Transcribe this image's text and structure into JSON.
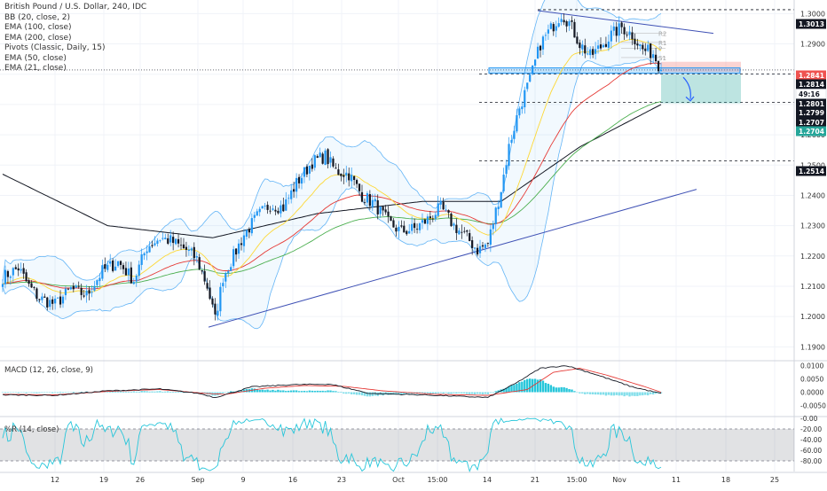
{
  "chart_data": {
    "type": "candlestick",
    "symbol_line": "British Pound / U.S. Dollar, 240, IDC",
    "indicators": [
      "BB (20, close, 2)",
      "EMA (100, close)",
      "EMA (200, close)",
      "Pivots (Classic, Daily, 15)",
      "EMA (50, close)",
      "EMA (21, close)"
    ],
    "x_labels": [
      "12",
      "19",
      "26",
      "Sep",
      "9",
      "16",
      "23",
      "Oct",
      "15:00",
      "14",
      "21",
      "15:00",
      "Nov",
      "11",
      "18",
      "25"
    ],
    "price_axis": {
      "ticks": [
        "1.3000",
        "1.2900",
        "1.2800",
        "1.2700",
        "1.2600",
        "1.2500",
        "1.2400",
        "1.2300",
        "1.2200",
        "1.2100",
        "1.2000",
        "1.1900"
      ],
      "ylim": [
        1.186,
        1.3045
      ]
    },
    "price_badges": [
      {
        "label": "1.3013",
        "value": 1.3013,
        "bg": "#131722",
        "dashed": true
      },
      {
        "label": "1.2841",
        "value": 1.2841,
        "bg": "#ef5350",
        "dashed": false
      },
      {
        "label": "1.2814",
        "value": 1.2814,
        "bg": "#131722",
        "dashed": false
      },
      {
        "label": "49:16",
        "value": 1.2807,
        "bg": "#ffffff",
        "dashed": false
      },
      {
        "label": "1.2801",
        "value": 1.2801,
        "bg": "#131722",
        "dashed": true
      },
      {
        "label": "1.2799",
        "value": 1.2799,
        "bg": "#131722",
        "dashed": false
      },
      {
        "label": "1.2707",
        "value": 1.2707,
        "bg": "#131722",
        "dashed": true
      },
      {
        "label": "1.2704",
        "value": 1.2704,
        "bg": "#26a69a",
        "dashed": false
      },
      {
        "label": "1.2514",
        "value": 1.2514,
        "bg": "#131722",
        "dashed": true
      }
    ],
    "pivot_labels": [
      "R2",
      "R1",
      "P",
      "S1"
    ],
    "close_series_anchors": [
      [
        0,
        1.213
      ],
      [
        6,
        1.216
      ],
      [
        10,
        1.21
      ],
      [
        14,
        1.206
      ],
      [
        20,
        1.204
      ],
      [
        26,
        1.209
      ],
      [
        32,
        1.207
      ],
      [
        38,
        1.215
      ],
      [
        44,
        1.218
      ],
      [
        50,
        1.212
      ],
      [
        55,
        1.223
      ],
      [
        60,
        1.226
      ],
      [
        64,
        1.225
      ],
      [
        70,
        1.222
      ],
      [
        74,
        1.219
      ],
      [
        78,
        1.21
      ],
      [
        81,
        1.199
      ],
      [
        84,
        1.213
      ],
      [
        88,
        1.22
      ],
      [
        92,
        1.227
      ],
      [
        97,
        1.233
      ],
      [
        102,
        1.237
      ],
      [
        107,
        1.236
      ],
      [
        112,
        1.244
      ],
      [
        118,
        1.251
      ],
      [
        123,
        1.253
      ],
      [
        127,
        1.248
      ],
      [
        132,
        1.247
      ],
      [
        137,
        1.24
      ],
      [
        142,
        1.237
      ],
      [
        147,
        1.231
      ],
      [
        152,
        1.228
      ],
      [
        157,
        1.229
      ],
      [
        162,
        1.232
      ],
      [
        167,
        1.236
      ],
      [
        172,
        1.23
      ],
      [
        177,
        1.226
      ],
      [
        181,
        1.222
      ],
      [
        185,
        1.224
      ],
      [
        190,
        1.242
      ],
      [
        193,
        1.256
      ],
      [
        197,
        1.269
      ],
      [
        201,
        1.278
      ],
      [
        205,
        1.29
      ],
      [
        209,
        1.295
      ],
      [
        213,
        1.3
      ],
      [
        216,
        1.297
      ],
      [
        220,
        1.29
      ],
      [
        224,
        1.286
      ],
      [
        228,
        1.289
      ],
      [
        232,
        1.293
      ],
      [
        236,
        1.2955
      ],
      [
        240,
        1.293
      ],
      [
        244,
        1.288
      ],
      [
        248,
        1.287
      ],
      [
        251,
        1.2814
      ]
    ],
    "ema200_anchors": [
      [
        0,
        1.247
      ],
      [
        40,
        1.23
      ],
      [
        80,
        1.226
      ],
      [
        120,
        1.234
      ],
      [
        160,
        1.238
      ],
      [
        190,
        1.238
      ],
      [
        220,
        1.256
      ],
      [
        251,
        1.27
      ]
    ],
    "macd": {
      "title": "MACD (12, 26, close, 9)",
      "ticks": [
        "0.0100",
        "0.0050",
        "0.0000",
        "-0.0050"
      ],
      "ylim": [
        -0.0085,
        0.0115
      ],
      "macd_anchors": [
        [
          0,
          -0.001
        ],
        [
          20,
          -0.0012
        ],
        [
          40,
          0.0005
        ],
        [
          60,
          0.0012
        ],
        [
          75,
          -0.0005
        ],
        [
          81,
          -0.002
        ],
        [
          95,
          0.002
        ],
        [
          110,
          0.0028
        ],
        [
          125,
          0.003
        ],
        [
          140,
          -0.0005
        ],
        [
          160,
          -0.001
        ],
        [
          180,
          -0.0018
        ],
        [
          185,
          -0.002
        ],
        [
          195,
          0.003
        ],
        [
          205,
          0.009
        ],
        [
          215,
          0.01
        ],
        [
          225,
          0.007
        ],
        [
          240,
          0.002
        ],
        [
          251,
          -0.0005
        ]
      ],
      "signal_anchors": [
        [
          0,
          -0.0008
        ],
        [
          20,
          -0.001
        ],
        [
          40,
          0.0003
        ],
        [
          60,
          0.001
        ],
        [
          78,
          -0.0005
        ],
        [
          85,
          -0.0008
        ],
        [
          100,
          0.0015
        ],
        [
          115,
          0.0025
        ],
        [
          130,
          0.0022
        ],
        [
          145,
          0.0005
        ],
        [
          165,
          -0.0008
        ],
        [
          185,
          -0.0012
        ],
        [
          200,
          0.001
        ],
        [
          210,
          0.0075
        ],
        [
          220,
          0.009
        ],
        [
          230,
          0.0065
        ],
        [
          245,
          0.002
        ],
        [
          251,
          0.0
        ]
      ]
    },
    "williams_r": {
      "title": "%R (14, close)",
      "ticks": [
        "-0.00",
        "-20.00",
        "-40.00",
        "-60.00",
        "-80.00",
        "-100.00"
      ],
      "ylim": [
        -100,
        0
      ],
      "band": [
        -80,
        -20
      ]
    }
  }
}
